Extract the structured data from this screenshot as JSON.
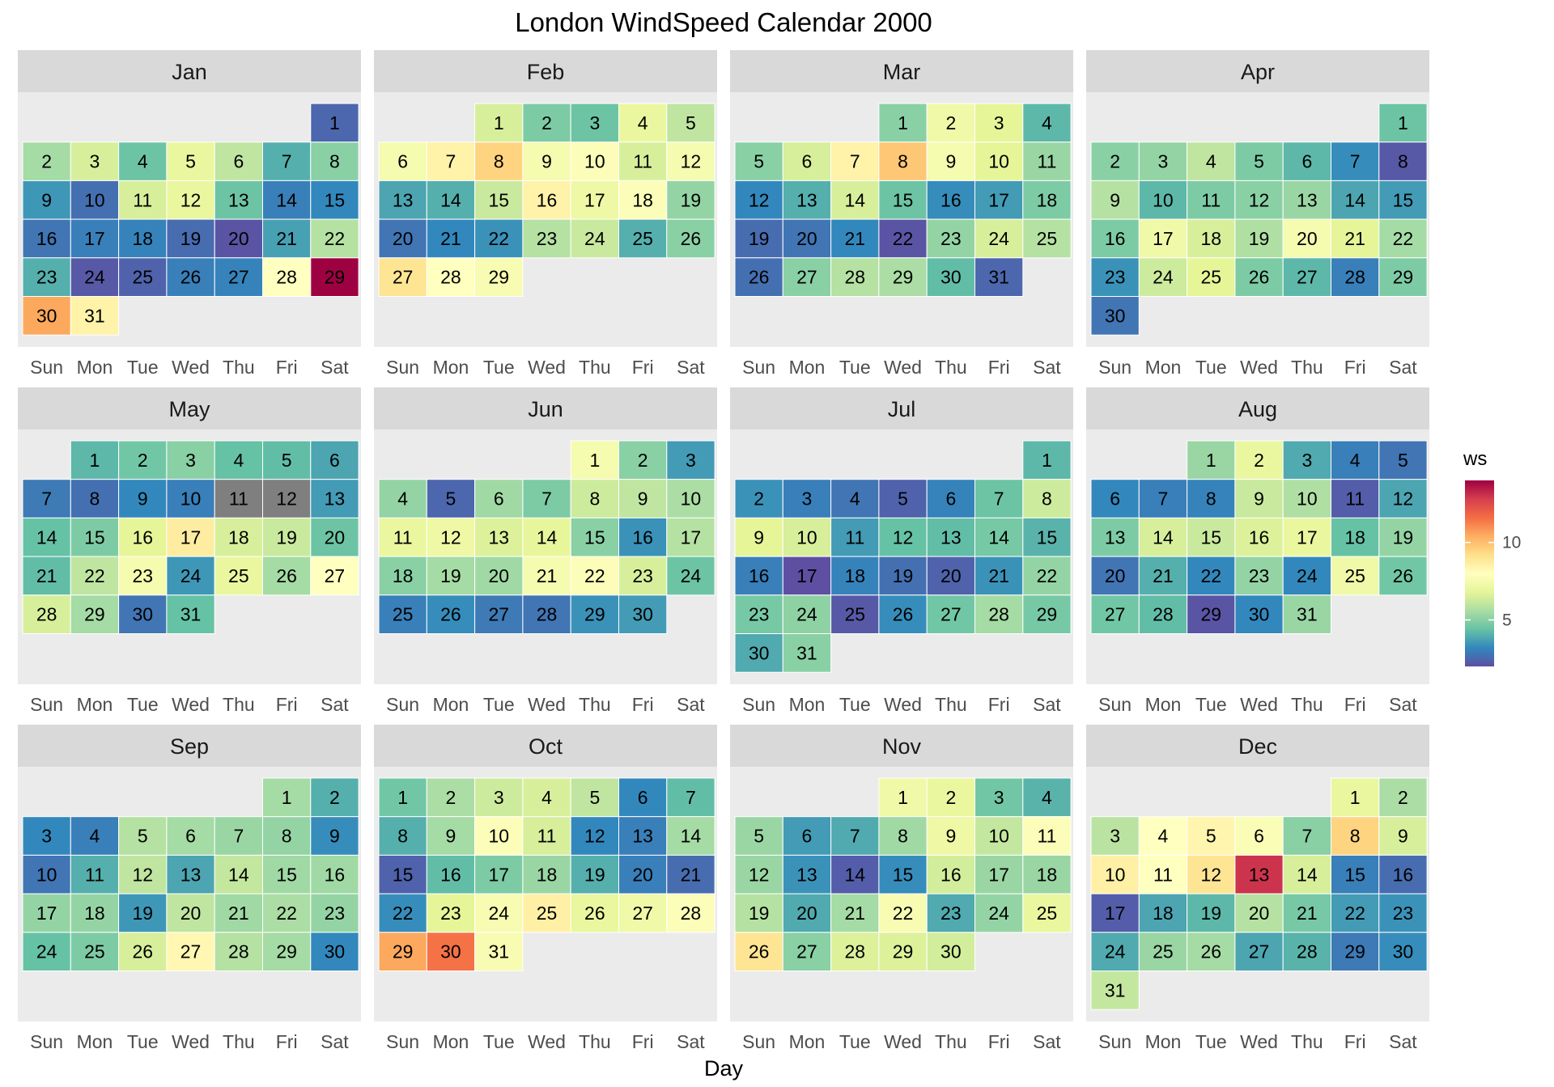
{
  "chart_data": {
    "type": "heatmap",
    "title": "London WindSpeed Calendar 2000",
    "xlabel": "Day",
    "ylabel": "",
    "year": 2000,
    "weekdays": [
      "Sun",
      "Mon",
      "Tue",
      "Wed",
      "Thu",
      "Fri",
      "Sat"
    ],
    "legend": {
      "title": "ws",
      "range": [
        2,
        14
      ],
      "ticks": [
        5,
        10
      ],
      "palette": [
        "#5e4fa2",
        "#3288bd",
        "#66c2a5",
        "#abdda4",
        "#e6f598",
        "#ffffbf",
        "#fee08b",
        "#fdae61",
        "#f46d43",
        "#d53e4f",
        "#9e0142"
      ],
      "na_color": "#7f7f7f"
    },
    "months": [
      {
        "name": "Jan",
        "first_weekday": 6,
        "values": [
          2.5,
          5.5,
          6.5,
          4.5,
          7.0,
          6.0,
          4.0,
          5.0,
          3.5,
          2.7,
          6.5,
          7.0,
          4.5,
          3.0,
          3.2,
          2.8,
          3.0,
          3.1,
          2.6,
          2.1,
          3.7,
          5.8,
          4.0,
          2.2,
          2.4,
          3.0,
          3.1,
          8.0,
          14.0,
          10.5,
          8.5
        ]
      },
      {
        "name": "Feb",
        "first_weekday": 2,
        "values": [
          6.5,
          4.8,
          4.5,
          7.0,
          6.0,
          7.5,
          8.5,
          9.5,
          7.5,
          7.8,
          6.5,
          7.5,
          3.8,
          4.0,
          6.2,
          8.5,
          7.2,
          7.8,
          5.2,
          2.8,
          3.2,
          3.4,
          5.8,
          6.2,
          4.0,
          5.0,
          9.0,
          8.0,
          7.6
        ]
      },
      {
        "name": "Mar",
        "first_weekday": 3,
        "values": [
          5.0,
          7.3,
          6.8,
          4.2,
          5.0,
          6.5,
          8.5,
          9.8,
          7.5,
          6.8,
          5.3,
          3.2,
          4.0,
          6.5,
          4.5,
          3.3,
          3.6,
          4.8,
          2.6,
          2.8,
          3.2,
          2.1,
          5.2,
          6.5,
          5.8,
          2.7,
          5.0,
          5.8,
          5.6,
          4.3,
          2.5
        ]
      },
      {
        "name": "Apr",
        "first_weekday": 6,
        "values": [
          4.5,
          5.0,
          5.2,
          6.0,
          4.8,
          4.2,
          3.3,
          2.2,
          5.8,
          4.2,
          4.8,
          5.0,
          5.3,
          3.8,
          3.6,
          4.8,
          7.3,
          6.5,
          5.7,
          7.5,
          6.8,
          5.5,
          3.4,
          6.3,
          6.8,
          4.8,
          4.2,
          3.0,
          4.8,
          2.8
        ]
      },
      {
        "name": "May",
        "first_weekday": 1,
        "values": [
          4.2,
          4.6,
          5.0,
          4.4,
          4.3,
          3.8,
          2.9,
          2.7,
          3.2,
          3.0,
          null,
          null,
          3.6,
          4.4,
          4.8,
          6.8,
          8.7,
          6.5,
          6.2,
          4.5,
          4.3,
          6.0,
          7.5,
          3.5,
          7.0,
          5.5,
          8.0,
          6.5,
          5.5,
          2.8,
          4.4
        ]
      },
      {
        "name": "Jun",
        "first_weekday": 4,
        "values": [
          7.5,
          5.0,
          3.6,
          5.2,
          2.5,
          5.4,
          4.8,
          6.3,
          6.0,
          5.6,
          7.0,
          7.2,
          6.6,
          6.9,
          5.0,
          3.4,
          5.8,
          5.0,
          5.5,
          5.4,
          7.5,
          7.8,
          6.5,
          4.5,
          3.0,
          3.3,
          2.9,
          2.8,
          3.4,
          3.6
        ]
      },
      {
        "name": "Jul",
        "first_weekday": 6,
        "values": [
          4.2,
          3.4,
          3.0,
          2.8,
          2.4,
          3.1,
          4.5,
          6.3,
          6.8,
          6.5,
          3.6,
          4.4,
          4.3,
          4.7,
          4.1,
          3.0,
          1.9,
          3.1,
          2.7,
          2.4,
          3.4,
          5.2,
          4.7,
          5.1,
          2.2,
          3.3,
          4.6,
          5.5,
          4.7,
          3.9,
          5.0
        ]
      },
      {
        "name": "Aug",
        "first_weekday": 2,
        "values": [
          5.3,
          7.0,
          3.9,
          3.0,
          2.8,
          3.2,
          3.0,
          3.1,
          6.2,
          5.7,
          2.3,
          3.8,
          4.8,
          6.5,
          6.2,
          6.6,
          7.0,
          4.4,
          5.2,
          2.8,
          4.0,
          3.2,
          5.2,
          3.2,
          7.3,
          4.6,
          4.6,
          4.3,
          2.1,
          3.2,
          5.3
        ]
      },
      {
        "name": "Sep",
        "first_weekday": 5,
        "values": [
          5.5,
          4.0,
          3.2,
          3.0,
          5.8,
          5.5,
          5.3,
          5.2,
          3.3,
          2.8,
          4.0,
          6.0,
          3.8,
          6.1,
          5.4,
          5.4,
          5.2,
          5.2,
          3.5,
          6.0,
          5.4,
          5.6,
          5.2,
          4.4,
          4.8,
          6.5,
          8.3,
          5.8,
          5.5,
          3.2
        ]
      },
      {
        "name": "Oct",
        "first_weekday": 0,
        "values": [
          4.6,
          5.6,
          6.3,
          6.5,
          6.0,
          3.2,
          4.3,
          4.0,
          5.5,
          7.8,
          6.5,
          3.2,
          3.0,
          5.5,
          2.4,
          4.3,
          4.8,
          5.3,
          4.0,
          3.0,
          2.6,
          3.3,
          6.8,
          7.6,
          8.6,
          7.0,
          7.3,
          7.8,
          10.5,
          11.5,
          7.6
        ]
      },
      {
        "name": "Nov",
        "first_weekday": 3,
        "values": [
          7.3,
          7.0,
          4.6,
          4.1,
          5.3,
          3.6,
          3.9,
          5.4,
          7.2,
          6.1,
          7.8,
          5.3,
          3.4,
          2.3,
          3.3,
          6.4,
          5.3,
          5.3,
          5.8,
          3.9,
          5.5,
          7.6,
          3.9,
          5.2,
          7.0,
          9.0,
          5.0,
          6.6,
          6.6,
          6.4
        ]
      },
      {
        "name": "Dec",
        "first_weekday": 5,
        "values": [
          7.0,
          5.6,
          5.9,
          8.0,
          8.4,
          7.7,
          5.0,
          9.5,
          6.5,
          8.6,
          8.0,
          9.0,
          13.0,
          6.5,
          3.0,
          2.6,
          2.3,
          3.8,
          4.2,
          5.8,
          4.7,
          3.6,
          3.4,
          3.9,
          5.3,
          5.5,
          3.8,
          4.1,
          2.9,
          3.3,
          6.1
        ]
      }
    ]
  }
}
